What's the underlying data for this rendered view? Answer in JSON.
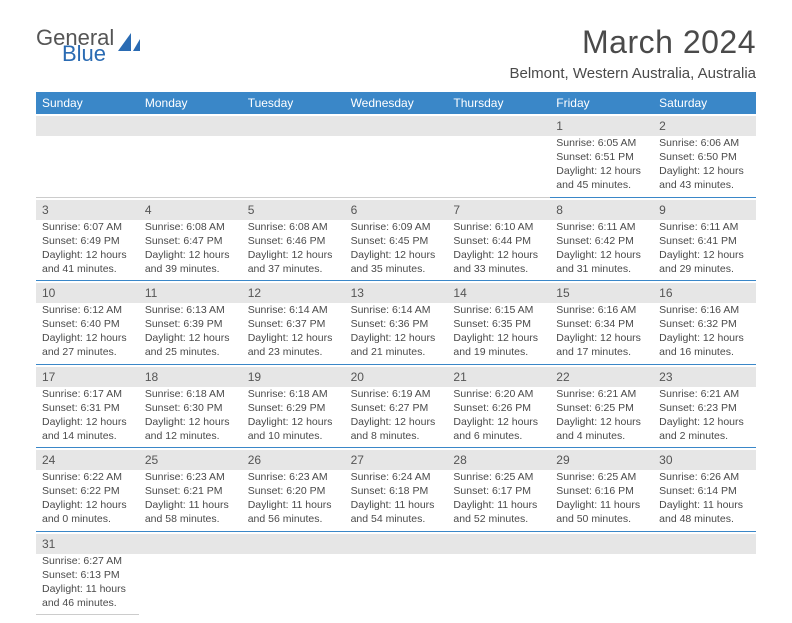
{
  "logo": {
    "part1": "General",
    "part2": "Blue"
  },
  "title": "March 2024",
  "subtitle": "Belmont, Western Australia, Australia",
  "colors": {
    "header_bg": "#3a87c8",
    "header_text": "#ffffff",
    "daynum_bg": "#e6e6e6",
    "rule": "#3a87c8",
    "logo_accent": "#2a6bb3",
    "text": "#4a4a4a"
  },
  "day_headers": [
    "Sunday",
    "Monday",
    "Tuesday",
    "Wednesday",
    "Thursday",
    "Friday",
    "Saturday"
  ],
  "weeks": [
    [
      null,
      null,
      null,
      null,
      null,
      {
        "n": "1",
        "sr": "Sunrise: 6:05 AM",
        "ss": "Sunset: 6:51 PM",
        "d1": "Daylight: 12 hours",
        "d2": "and 45 minutes."
      },
      {
        "n": "2",
        "sr": "Sunrise: 6:06 AM",
        "ss": "Sunset: 6:50 PM",
        "d1": "Daylight: 12 hours",
        "d2": "and 43 minutes."
      }
    ],
    [
      {
        "n": "3",
        "sr": "Sunrise: 6:07 AM",
        "ss": "Sunset: 6:49 PM",
        "d1": "Daylight: 12 hours",
        "d2": "and 41 minutes."
      },
      {
        "n": "4",
        "sr": "Sunrise: 6:08 AM",
        "ss": "Sunset: 6:47 PM",
        "d1": "Daylight: 12 hours",
        "d2": "and 39 minutes."
      },
      {
        "n": "5",
        "sr": "Sunrise: 6:08 AM",
        "ss": "Sunset: 6:46 PM",
        "d1": "Daylight: 12 hours",
        "d2": "and 37 minutes."
      },
      {
        "n": "6",
        "sr": "Sunrise: 6:09 AM",
        "ss": "Sunset: 6:45 PM",
        "d1": "Daylight: 12 hours",
        "d2": "and 35 minutes."
      },
      {
        "n": "7",
        "sr": "Sunrise: 6:10 AM",
        "ss": "Sunset: 6:44 PM",
        "d1": "Daylight: 12 hours",
        "d2": "and 33 minutes."
      },
      {
        "n": "8",
        "sr": "Sunrise: 6:11 AM",
        "ss": "Sunset: 6:42 PM",
        "d1": "Daylight: 12 hours",
        "d2": "and 31 minutes."
      },
      {
        "n": "9",
        "sr": "Sunrise: 6:11 AM",
        "ss": "Sunset: 6:41 PM",
        "d1": "Daylight: 12 hours",
        "d2": "and 29 minutes."
      }
    ],
    [
      {
        "n": "10",
        "sr": "Sunrise: 6:12 AM",
        "ss": "Sunset: 6:40 PM",
        "d1": "Daylight: 12 hours",
        "d2": "and 27 minutes."
      },
      {
        "n": "11",
        "sr": "Sunrise: 6:13 AM",
        "ss": "Sunset: 6:39 PM",
        "d1": "Daylight: 12 hours",
        "d2": "and 25 minutes."
      },
      {
        "n": "12",
        "sr": "Sunrise: 6:14 AM",
        "ss": "Sunset: 6:37 PM",
        "d1": "Daylight: 12 hours",
        "d2": "and 23 minutes."
      },
      {
        "n": "13",
        "sr": "Sunrise: 6:14 AM",
        "ss": "Sunset: 6:36 PM",
        "d1": "Daylight: 12 hours",
        "d2": "and 21 minutes."
      },
      {
        "n": "14",
        "sr": "Sunrise: 6:15 AM",
        "ss": "Sunset: 6:35 PM",
        "d1": "Daylight: 12 hours",
        "d2": "and 19 minutes."
      },
      {
        "n": "15",
        "sr": "Sunrise: 6:16 AM",
        "ss": "Sunset: 6:34 PM",
        "d1": "Daylight: 12 hours",
        "d2": "and 17 minutes."
      },
      {
        "n": "16",
        "sr": "Sunrise: 6:16 AM",
        "ss": "Sunset: 6:32 PM",
        "d1": "Daylight: 12 hours",
        "d2": "and 16 minutes."
      }
    ],
    [
      {
        "n": "17",
        "sr": "Sunrise: 6:17 AM",
        "ss": "Sunset: 6:31 PM",
        "d1": "Daylight: 12 hours",
        "d2": "and 14 minutes."
      },
      {
        "n": "18",
        "sr": "Sunrise: 6:18 AM",
        "ss": "Sunset: 6:30 PM",
        "d1": "Daylight: 12 hours",
        "d2": "and 12 minutes."
      },
      {
        "n": "19",
        "sr": "Sunrise: 6:18 AM",
        "ss": "Sunset: 6:29 PM",
        "d1": "Daylight: 12 hours",
        "d2": "and 10 minutes."
      },
      {
        "n": "20",
        "sr": "Sunrise: 6:19 AM",
        "ss": "Sunset: 6:27 PM",
        "d1": "Daylight: 12 hours",
        "d2": "and 8 minutes."
      },
      {
        "n": "21",
        "sr": "Sunrise: 6:20 AM",
        "ss": "Sunset: 6:26 PM",
        "d1": "Daylight: 12 hours",
        "d2": "and 6 minutes."
      },
      {
        "n": "22",
        "sr": "Sunrise: 6:21 AM",
        "ss": "Sunset: 6:25 PM",
        "d1": "Daylight: 12 hours",
        "d2": "and 4 minutes."
      },
      {
        "n": "23",
        "sr": "Sunrise: 6:21 AM",
        "ss": "Sunset: 6:23 PM",
        "d1": "Daylight: 12 hours",
        "d2": "and 2 minutes."
      }
    ],
    [
      {
        "n": "24",
        "sr": "Sunrise: 6:22 AM",
        "ss": "Sunset: 6:22 PM",
        "d1": "Daylight: 12 hours",
        "d2": "and 0 minutes."
      },
      {
        "n": "25",
        "sr": "Sunrise: 6:23 AM",
        "ss": "Sunset: 6:21 PM",
        "d1": "Daylight: 11 hours",
        "d2": "and 58 minutes."
      },
      {
        "n": "26",
        "sr": "Sunrise: 6:23 AM",
        "ss": "Sunset: 6:20 PM",
        "d1": "Daylight: 11 hours",
        "d2": "and 56 minutes."
      },
      {
        "n": "27",
        "sr": "Sunrise: 6:24 AM",
        "ss": "Sunset: 6:18 PM",
        "d1": "Daylight: 11 hours",
        "d2": "and 54 minutes."
      },
      {
        "n": "28",
        "sr": "Sunrise: 6:25 AM",
        "ss": "Sunset: 6:17 PM",
        "d1": "Daylight: 11 hours",
        "d2": "and 52 minutes."
      },
      {
        "n": "29",
        "sr": "Sunrise: 6:25 AM",
        "ss": "Sunset: 6:16 PM",
        "d1": "Daylight: 11 hours",
        "d2": "and 50 minutes."
      },
      {
        "n": "30",
        "sr": "Sunrise: 6:26 AM",
        "ss": "Sunset: 6:14 PM",
        "d1": "Daylight: 11 hours",
        "d2": "and 48 minutes."
      }
    ],
    [
      {
        "n": "31",
        "sr": "Sunrise: 6:27 AM",
        "ss": "Sunset: 6:13 PM",
        "d1": "Daylight: 11 hours",
        "d2": "and 46 minutes."
      },
      null,
      null,
      null,
      null,
      null,
      null
    ]
  ]
}
